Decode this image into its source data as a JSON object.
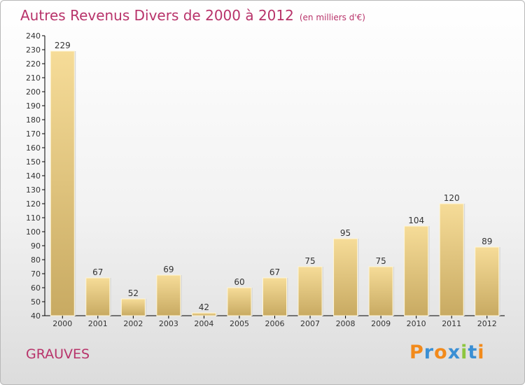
{
  "chart_data": {
    "type": "bar",
    "title": "Autres Revenus Divers de 2000 à 2012",
    "unit": "(en milliers d'€)",
    "categories": [
      "2000",
      "2001",
      "2002",
      "2003",
      "2004",
      "2005",
      "2006",
      "2007",
      "2008",
      "2009",
      "2010",
      "2011",
      "2012"
    ],
    "values": [
      229,
      67,
      52,
      69,
      42,
      60,
      67,
      75,
      95,
      75,
      104,
      120,
      89
    ],
    "data_labels": [
      "229",
      "67",
      "52",
      "69",
      "42",
      "60",
      "67",
      "75",
      "95",
      "75",
      "104",
      "120",
      "89"
    ],
    "ylim": [
      40,
      240
    ],
    "yticks": [
      "40",
      "50",
      "60",
      "70",
      "80",
      "90",
      "100",
      "110",
      "120",
      "130",
      "140",
      "150",
      "160",
      "170",
      "180",
      "190",
      "200",
      "210",
      "220",
      "230",
      "240"
    ],
    "grid": false,
    "bar_color_light": "#f6dc98",
    "bar_color_dark": "#c8aa62"
  },
  "footer": {
    "place": "GRAUVES",
    "logo_letters": [
      "P",
      "r",
      "o",
      "x",
      "i",
      "t",
      "i"
    ],
    "logo_colors": [
      "#f28a1b",
      "#3a8fd4",
      "#f28a1b",
      "#3a8fd4",
      "#8dc63f",
      "#3a8fd4",
      "#f28a1b"
    ]
  },
  "colors": {
    "title": "#b8336a",
    "axis": "#000000"
  }
}
